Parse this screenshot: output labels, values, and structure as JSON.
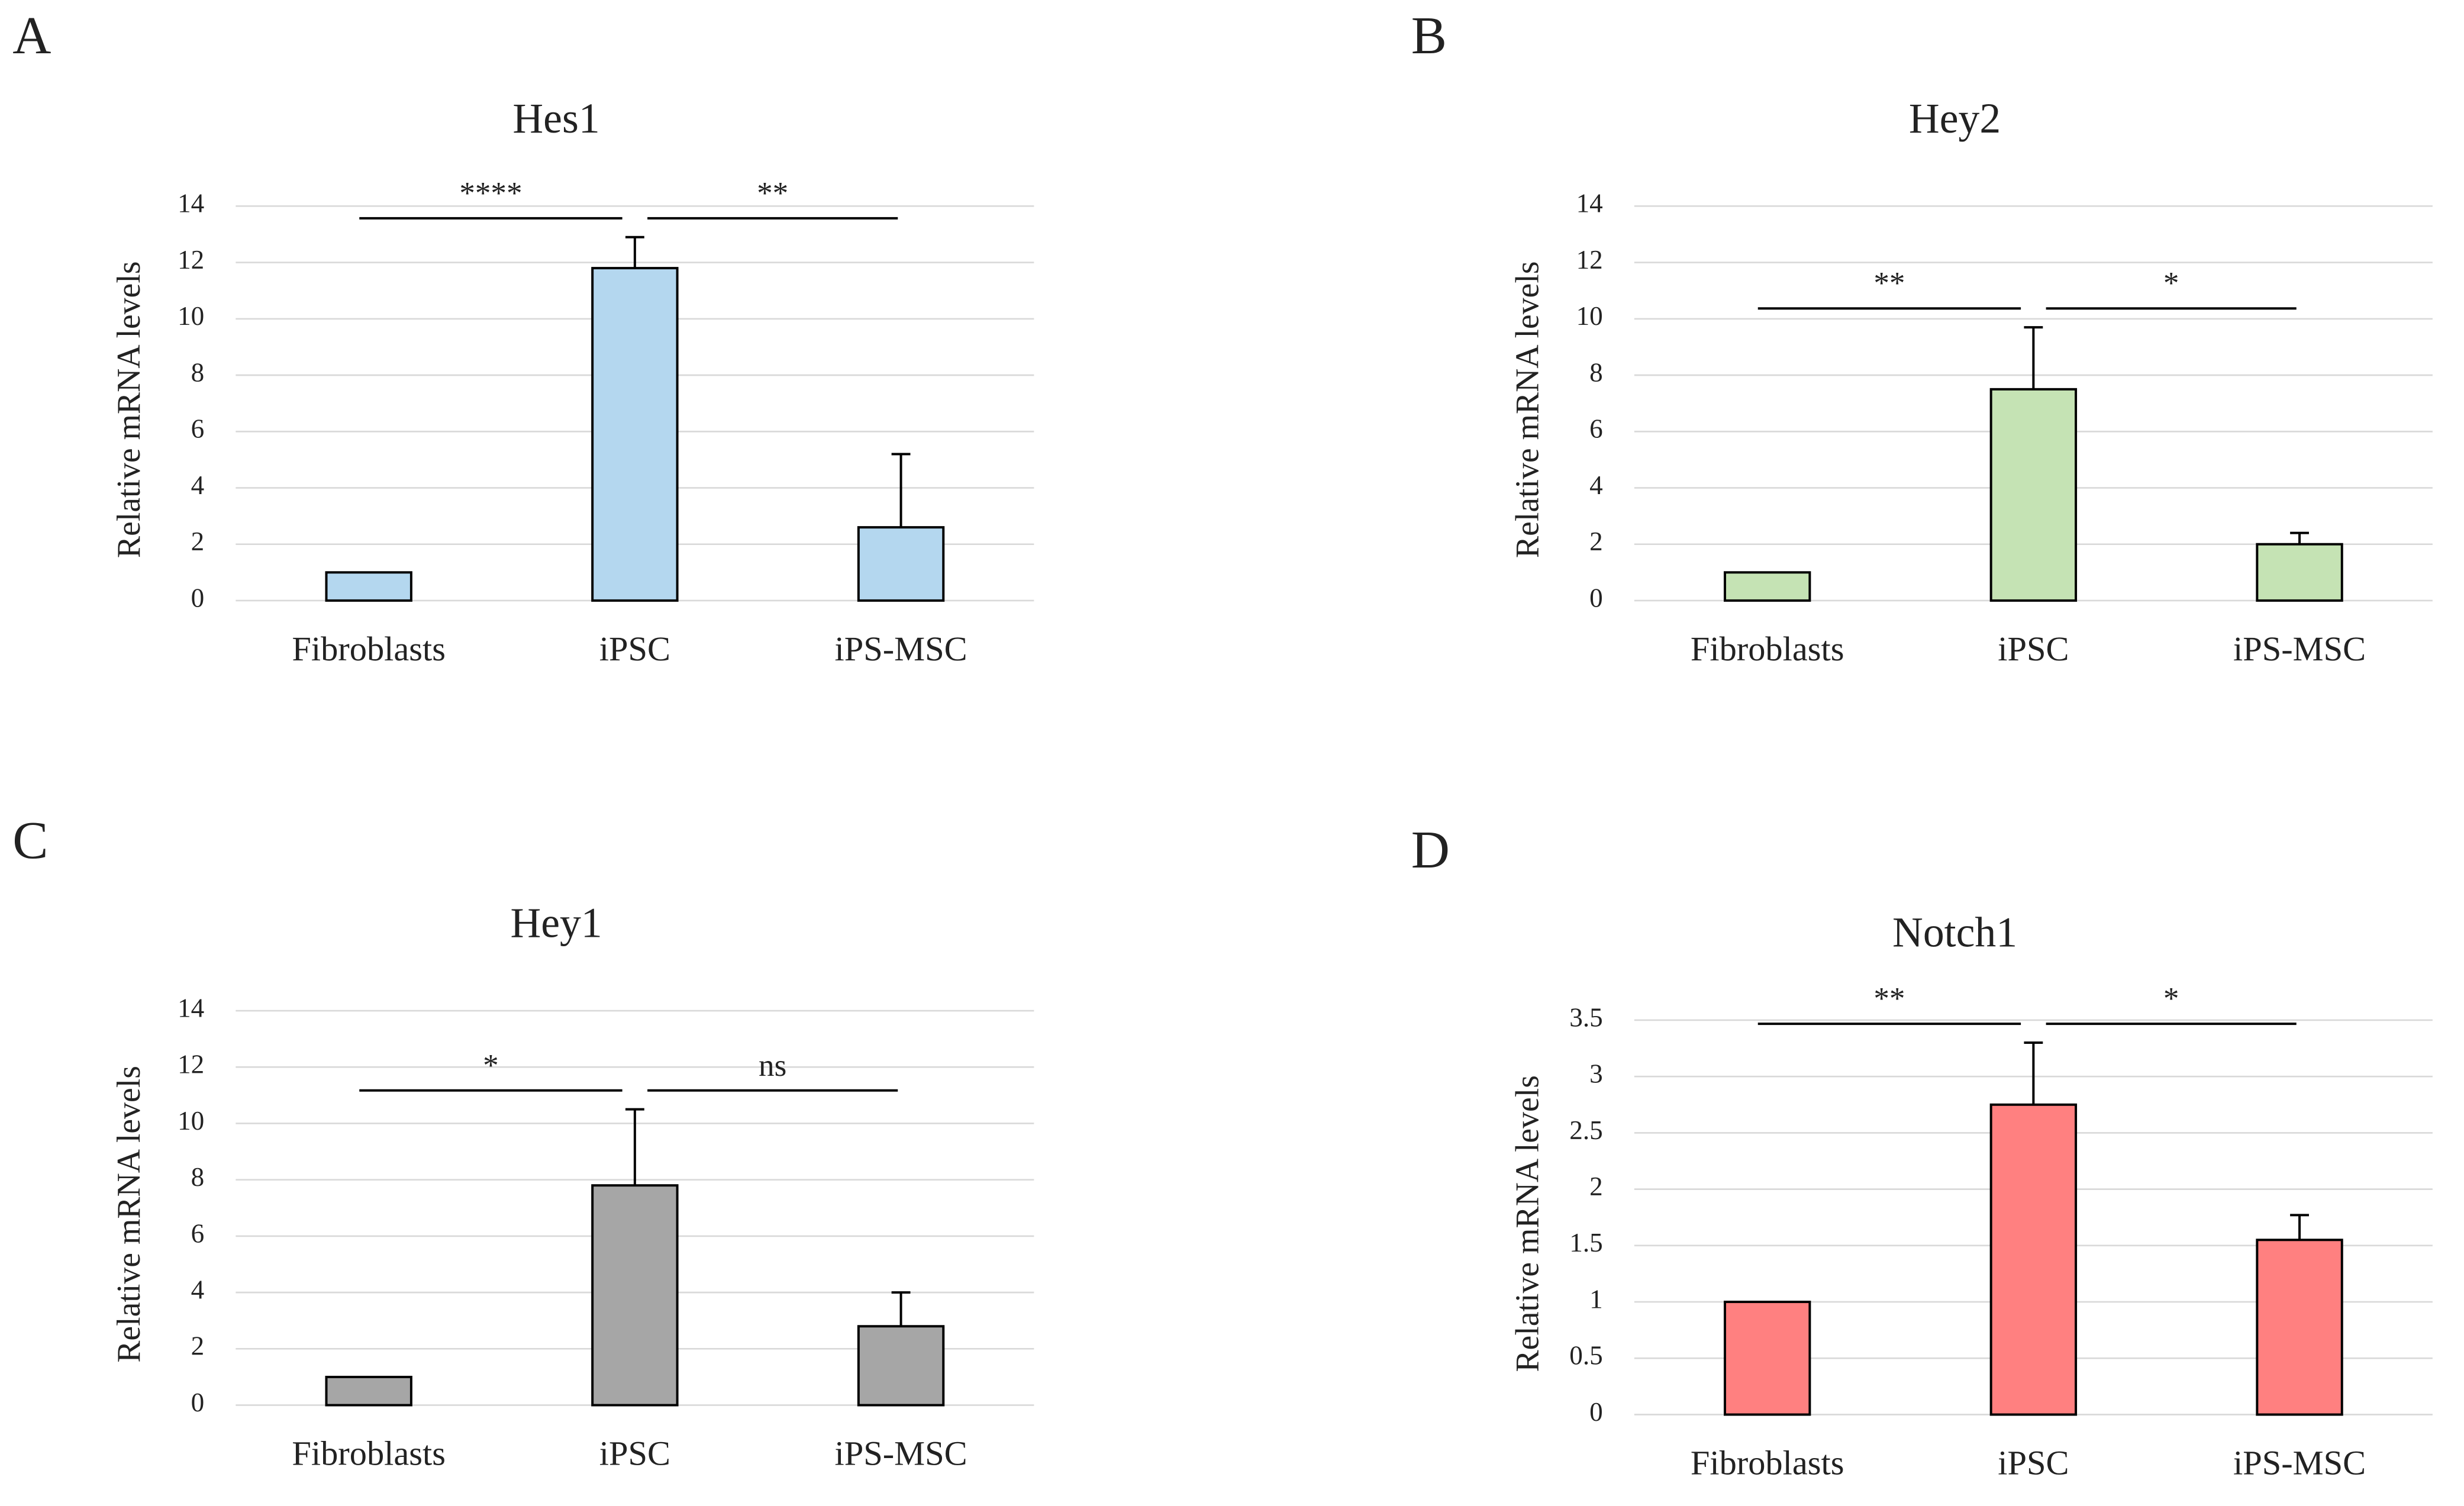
{
  "chart_data": [
    {
      "type": "bar",
      "panel": "A",
      "title": "Hes1",
      "y_label": "Relative mRNA levels",
      "categories": [
        "Fibroblasts",
        "iPSC",
        "iPS-MSC"
      ],
      "values": [
        1,
        11.8,
        2.6
      ],
      "errors": [
        0,
        1.1,
        2.6
      ],
      "color": "#b4d7ef",
      "ylim": [
        0,
        14
      ],
      "yticks": [
        0,
        2,
        4,
        6,
        8,
        10,
        12,
        14
      ],
      "grid": true,
      "annotations": [
        "****",
        "**"
      ]
    },
    {
      "type": "bar",
      "panel": "B",
      "title": "Hey2",
      "y_label": "Relative mRNA levels",
      "categories": [
        "Fibroblasts",
        "iPSC",
        "iPS-MSC"
      ],
      "values": [
        1,
        7.5,
        2.0
      ],
      "errors": [
        0,
        2.2,
        0.4
      ],
      "color": "#c5e3b4",
      "ylim": [
        0,
        14
      ],
      "yticks": [
        0,
        2,
        4,
        6,
        8,
        10,
        12,
        14
      ],
      "grid": true,
      "annotations": [
        "**",
        "*"
      ]
    },
    {
      "type": "bar",
      "panel": "C",
      "title": "Hey1",
      "y_label": "Relative mRNA levels",
      "categories": [
        "Fibroblasts",
        "iPSC",
        "iPS-MSC"
      ],
      "values": [
        1,
        7.8,
        2.8
      ],
      "errors": [
        0,
        2.7,
        1.2
      ],
      "color": "#a6a6a6",
      "ylim": [
        0,
        14
      ],
      "yticks": [
        0,
        2,
        4,
        6,
        8,
        10,
        12,
        14
      ],
      "grid": true,
      "annotations": [
        "*",
        "ns"
      ]
    },
    {
      "type": "bar",
      "panel": "D",
      "title": "Notch1",
      "y_label": "Relative mRNA levels",
      "categories": [
        "Fibroblasts",
        "iPSC",
        "iPS-MSC"
      ],
      "values": [
        1,
        2.75,
        1.55
      ],
      "errors": [
        0,
        0.55,
        0.22
      ],
      "color": "#ff8080",
      "ylim": [
        0,
        3.5
      ],
      "yticks": [
        0,
        0.5,
        1,
        1.5,
        2,
        2.5,
        3,
        3.5
      ],
      "grid": true,
      "annotations": [
        "**",
        "*"
      ]
    }
  ]
}
